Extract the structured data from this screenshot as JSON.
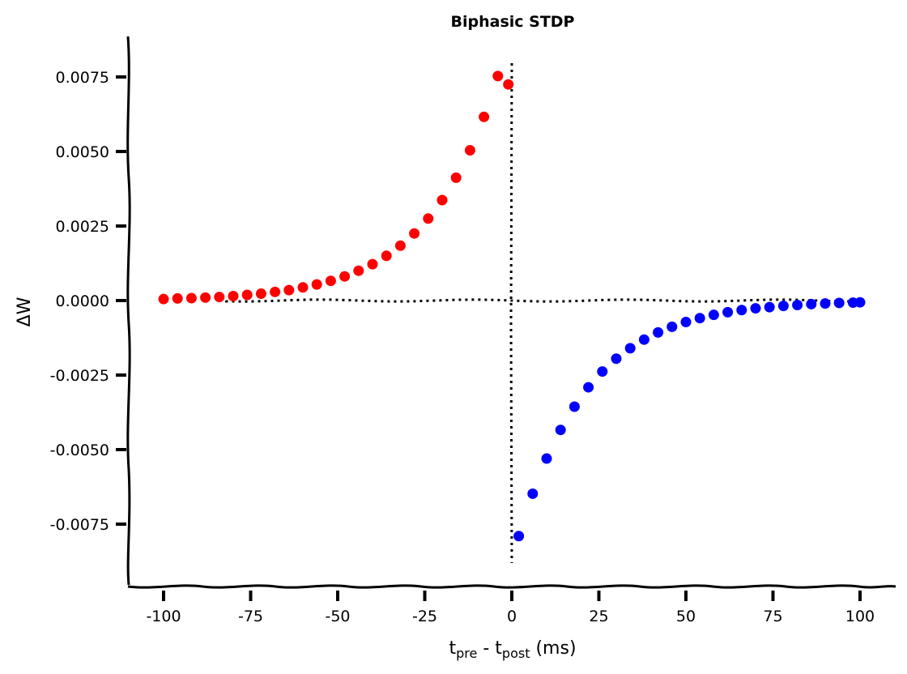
{
  "chart_data": {
    "type": "scatter",
    "title": "Biphasic STDP",
    "xlabel": {
      "main": "t",
      "sub1": "pre",
      "mid": " - t",
      "sub2": "post",
      "tail": " (ms)"
    },
    "ylabel": "ΔW",
    "xlim": [
      -110,
      110
    ],
    "ylim": [
      -0.0095,
      0.0088
    ],
    "xticks": [
      -100,
      -75,
      -50,
      -25,
      0,
      25,
      50,
      75,
      100
    ],
    "xtick_labels": [
      "-100",
      "-75",
      "-50",
      "-25",
      "0",
      "25",
      "50",
      "75",
      "100"
    ],
    "yticks": [
      0.0075,
      0.005,
      0.0025,
      0,
      -0.0025,
      -0.005,
      -0.0075
    ],
    "ytick_labels": [
      "0.0075",
      "0.0050",
      "0.0025",
      "0.0000",
      "-0.0025",
      "-0.0050",
      "-0.0075"
    ],
    "grid": false,
    "reference_lines": [
      {
        "orientation": "horizontal",
        "value": 0,
        "style": "dotted"
      },
      {
        "orientation": "vertical",
        "value": 0,
        "style": "dotted"
      }
    ],
    "series": [
      {
        "color": "#ff0000",
        "x": [
          -100,
          -96,
          -92,
          -88,
          -84,
          -80,
          -76,
          -72,
          -68,
          -64,
          -60,
          -56,
          -52,
          -48,
          -44,
          -40,
          -36,
          -32,
          -28,
          -24,
          -20,
          -16,
          -12,
          -8,
          -4,
          -1
        ],
        "y": [
          5e-05,
          7e-05,
          8e-05,
          0.0001,
          0.00012,
          0.00015,
          0.00019,
          0.00023,
          0.00029,
          0.00035,
          0.00044,
          0.00054,
          0.00066,
          0.00081,
          0.001,
          0.00122,
          0.0015,
          0.00184,
          0.00225,
          0.00275,
          0.00337,
          0.00412,
          0.00504,
          0.00616,
          0.00753,
          0.00725
        ]
      },
      {
        "color": "#0000ff",
        "x": [
          2,
          6,
          10,
          14,
          18,
          22,
          26,
          30,
          34,
          38,
          42,
          46,
          50,
          54,
          58,
          62,
          66,
          70,
          74,
          78,
          82,
          86,
          90,
          94,
          98,
          100
        ],
        "y": [
          -0.0079,
          -0.00648,
          -0.0053,
          -0.00434,
          -0.00356,
          -0.00291,
          -0.00238,
          -0.00195,
          -0.0016,
          -0.00131,
          -0.00107,
          -0.00088,
          -0.00072,
          -0.00059,
          -0.00048,
          -0.00039,
          -0.00032,
          -0.00026,
          -0.00022,
          -0.00018,
          -0.00015,
          -0.00012,
          -0.0001,
          -8e-05,
          -7e-05,
          -6e-05
        ]
      }
    ]
  }
}
